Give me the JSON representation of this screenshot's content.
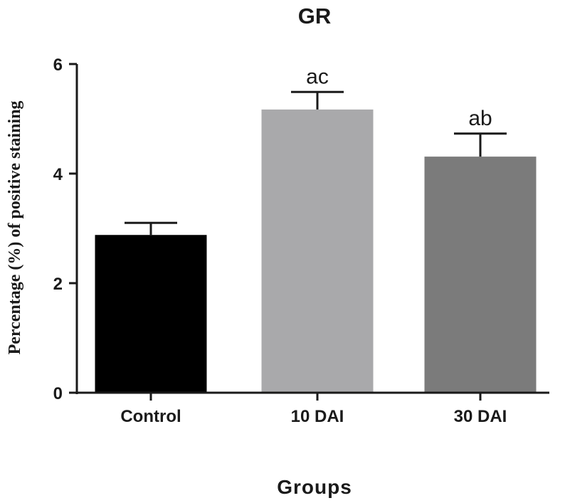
{
  "chart_data": {
    "type": "bar",
    "title": "GR",
    "xlabel": "Groups",
    "ylabel": "Percentage (%) of positive staining",
    "categories": [
      "Control",
      "10 DAI",
      "30 DAI"
    ],
    "values": [
      2.88,
      5.17,
      4.31
    ],
    "errors": [
      0.22,
      0.32,
      0.42
    ],
    "annotations": [
      "",
      "ac",
      "ab"
    ],
    "colors": [
      "#000000",
      "#a9a9ab",
      "#7b7b7b"
    ],
    "ylim": [
      0,
      6
    ],
    "yticks": [
      0,
      2,
      4,
      6
    ],
    "yticklabels": [
      "0",
      "2",
      "4",
      "6"
    ],
    "grid": false,
    "legend": "none"
  }
}
